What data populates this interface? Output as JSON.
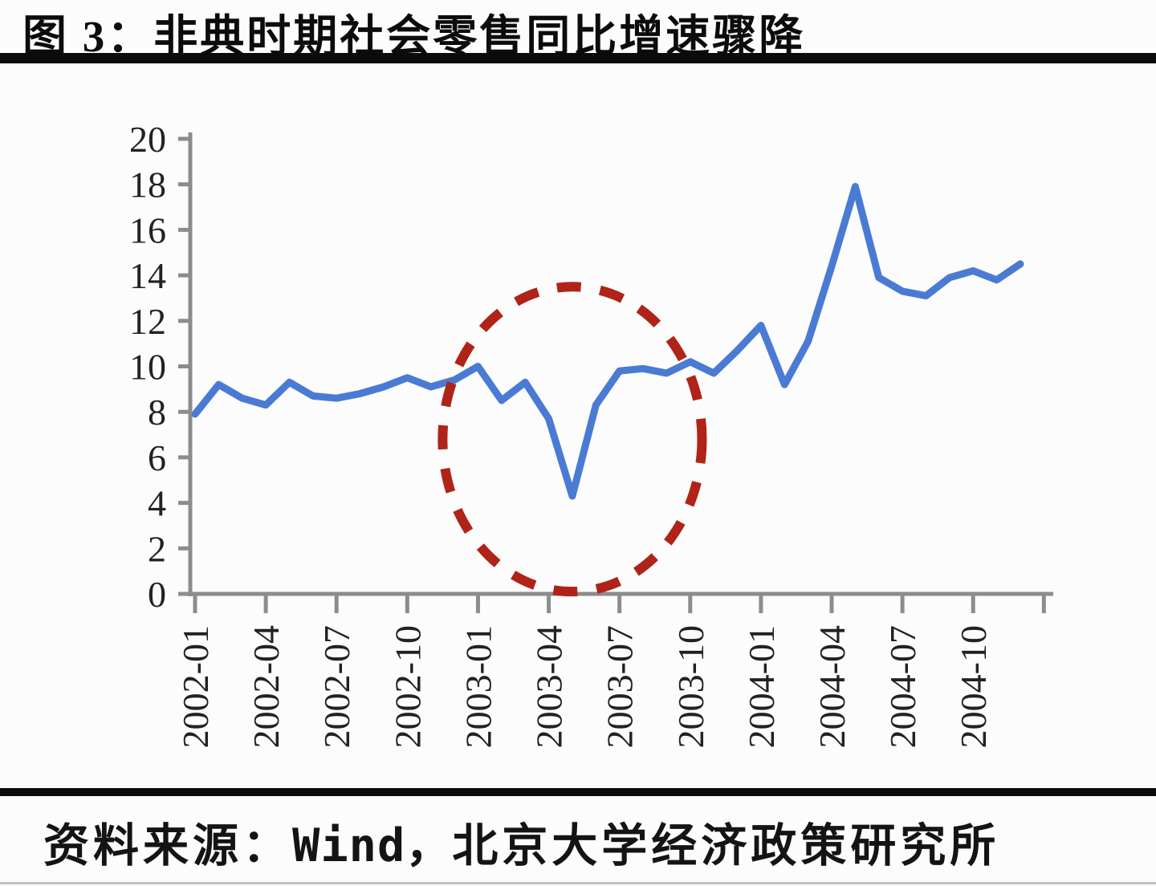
{
  "page": {
    "title": "图 3：非典时期社会零售同比增速骤降",
    "source_prefix": "资料来源：",
    "source_vendor": "Wind，",
    "source_suffix": "北京大学经济政策研究所"
  },
  "chart_data": {
    "type": "line",
    "title": "图 3：非典时期社会零售同比增速骤降",
    "x": [
      "2002-01",
      "2002-02",
      "2002-03",
      "2002-04",
      "2002-05",
      "2002-06",
      "2002-07",
      "2002-08",
      "2002-09",
      "2002-10",
      "2002-11",
      "2002-12",
      "2003-01",
      "2003-02",
      "2003-03",
      "2003-04",
      "2003-05",
      "2003-06",
      "2003-07",
      "2003-08",
      "2003-09",
      "2003-10",
      "2003-11",
      "2003-12",
      "2004-01",
      "2004-02",
      "2004-03",
      "2004-04",
      "2004-05",
      "2004-06",
      "2004-07",
      "2004-08",
      "2004-09",
      "2004-10",
      "2004-11",
      "2004-12"
    ],
    "values": [
      7.9,
      9.2,
      8.6,
      8.3,
      9.3,
      8.7,
      8.6,
      8.8,
      9.1,
      9.5,
      9.1,
      9.4,
      10.0,
      8.5,
      9.3,
      7.7,
      4.3,
      8.3,
      9.8,
      9.9,
      9.7,
      10.2,
      9.7,
      10.7,
      11.8,
      9.2,
      11.1,
      14.4,
      17.9,
      13.9,
      13.3,
      13.1,
      13.9,
      14.2,
      13.8,
      14.5
    ],
    "x_tick_labels": [
      "2002-01",
      "2002-04",
      "2002-07",
      "2002-10",
      "2003-01",
      "2003-04",
      "2003-07",
      "2003-10",
      "2004-01",
      "2004-04",
      "2004-07",
      "2004-10"
    ],
    "yticks": [
      0,
      2,
      4,
      6,
      8,
      10,
      12,
      14,
      16,
      18,
      20
    ],
    "ylim": [
      0,
      20
    ],
    "xlabel": "",
    "ylabel": "",
    "grid": false,
    "legend": null,
    "line_color": "#4a7bd4",
    "axis_color": "#8c8c8c",
    "label_color": "#222222",
    "annotation": {
      "shape": "dashed-ellipse",
      "color": "#b02318",
      "center_month": "2003-05",
      "center_value": 6.8,
      "radius_months": 5.5,
      "radius_value": 6.7
    }
  }
}
